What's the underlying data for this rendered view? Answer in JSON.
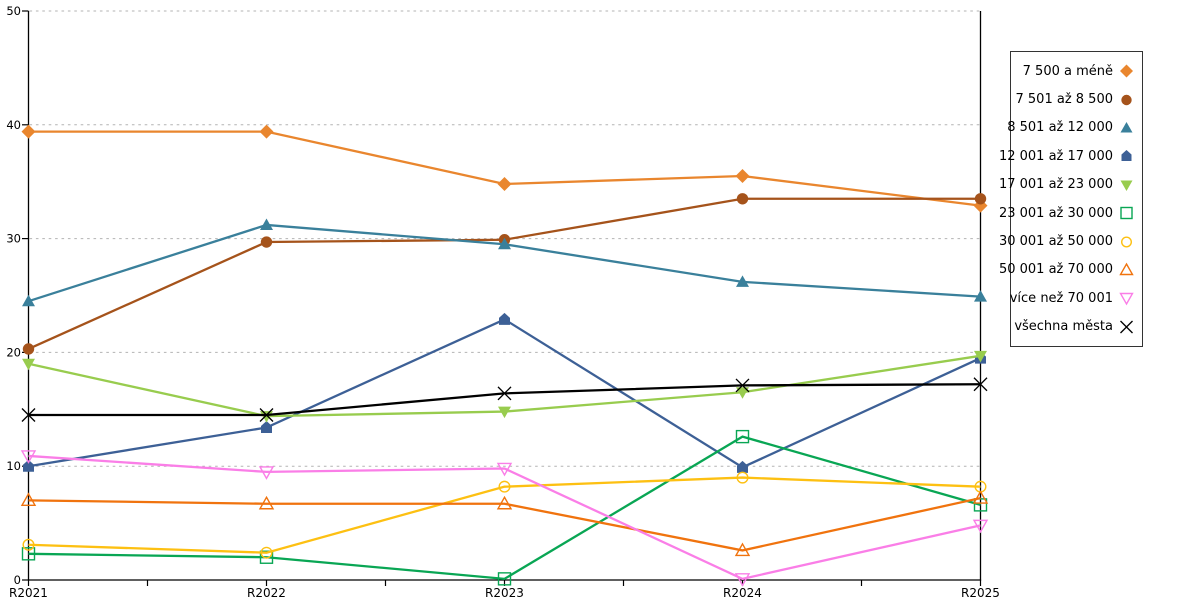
{
  "chart_data": {
    "type": "line",
    "title": "",
    "xlabel": "",
    "ylabel": "",
    "categories": [
      "R2021",
      "R2022",
      "R2023",
      "R2024",
      "R2025"
    ],
    "y_axis": {
      "min": 0,
      "max": 50,
      "tick_step": 10,
      "tick_labels": [
        "0",
        "10",
        "20",
        "30",
        "40",
        "50"
      ]
    },
    "grid": "horizontal dotted gray",
    "legend_position": "right",
    "gridline_color": "#b3b3b3",
    "axis_color": "#000000",
    "series": [
      {
        "name": "7 500 a méně",
        "marker": "diamond",
        "fill": "filled",
        "color": "#E9862E",
        "values": [
          39.4,
          39.4,
          34.8,
          35.5,
          32.9
        ]
      },
      {
        "name": "7 501 až 8 500",
        "marker": "circle",
        "fill": "filled",
        "color": "#A5531B",
        "values": [
          20.3,
          29.7,
          29.9,
          33.5,
          33.5
        ]
      },
      {
        "name": "8 501 až 12 000",
        "marker": "triangle-up",
        "fill": "filled",
        "color": "#3A809B",
        "values": [
          24.5,
          31.2,
          29.5,
          26.2,
          24.9
        ]
      },
      {
        "name": "12 001 až 17 000",
        "marker": "pentagon",
        "fill": "filled",
        "color": "#3D6096",
        "values": [
          10.0,
          13.4,
          22.9,
          9.9,
          19.5
        ]
      },
      {
        "name": "17 001 až 23 000",
        "marker": "triangle-down",
        "fill": "filled",
        "color": "#98CC4E",
        "values": [
          19.0,
          14.4,
          14.8,
          16.5,
          19.7
        ]
      },
      {
        "name": "23 001 až 30 000",
        "marker": "square",
        "fill": "open",
        "color": "#09A654",
        "values": [
          2.3,
          2.0,
          0.1,
          12.6,
          6.6
        ]
      },
      {
        "name": "30 001 až 50 000",
        "marker": "circle",
        "fill": "open",
        "color": "#FDC012",
        "values": [
          3.1,
          2.4,
          8.2,
          9.0,
          8.2
        ]
      },
      {
        "name": "50 001 až 70 000",
        "marker": "triangle-up",
        "fill": "open",
        "color": "#F0730E",
        "values": [
          7.0,
          6.7,
          6.7,
          2.6,
          7.2
        ]
      },
      {
        "name": "více než 70 001",
        "marker": "triangle-down",
        "fill": "open",
        "color": "#FA7EE7",
        "values": [
          10.9,
          9.5,
          9.8,
          0.1,
          4.8
        ]
      },
      {
        "name": "všechna města",
        "marker": "x",
        "fill": "open",
        "color": "#000000",
        "values": [
          14.5,
          14.5,
          16.4,
          17.1,
          17.2
        ]
      }
    ]
  }
}
